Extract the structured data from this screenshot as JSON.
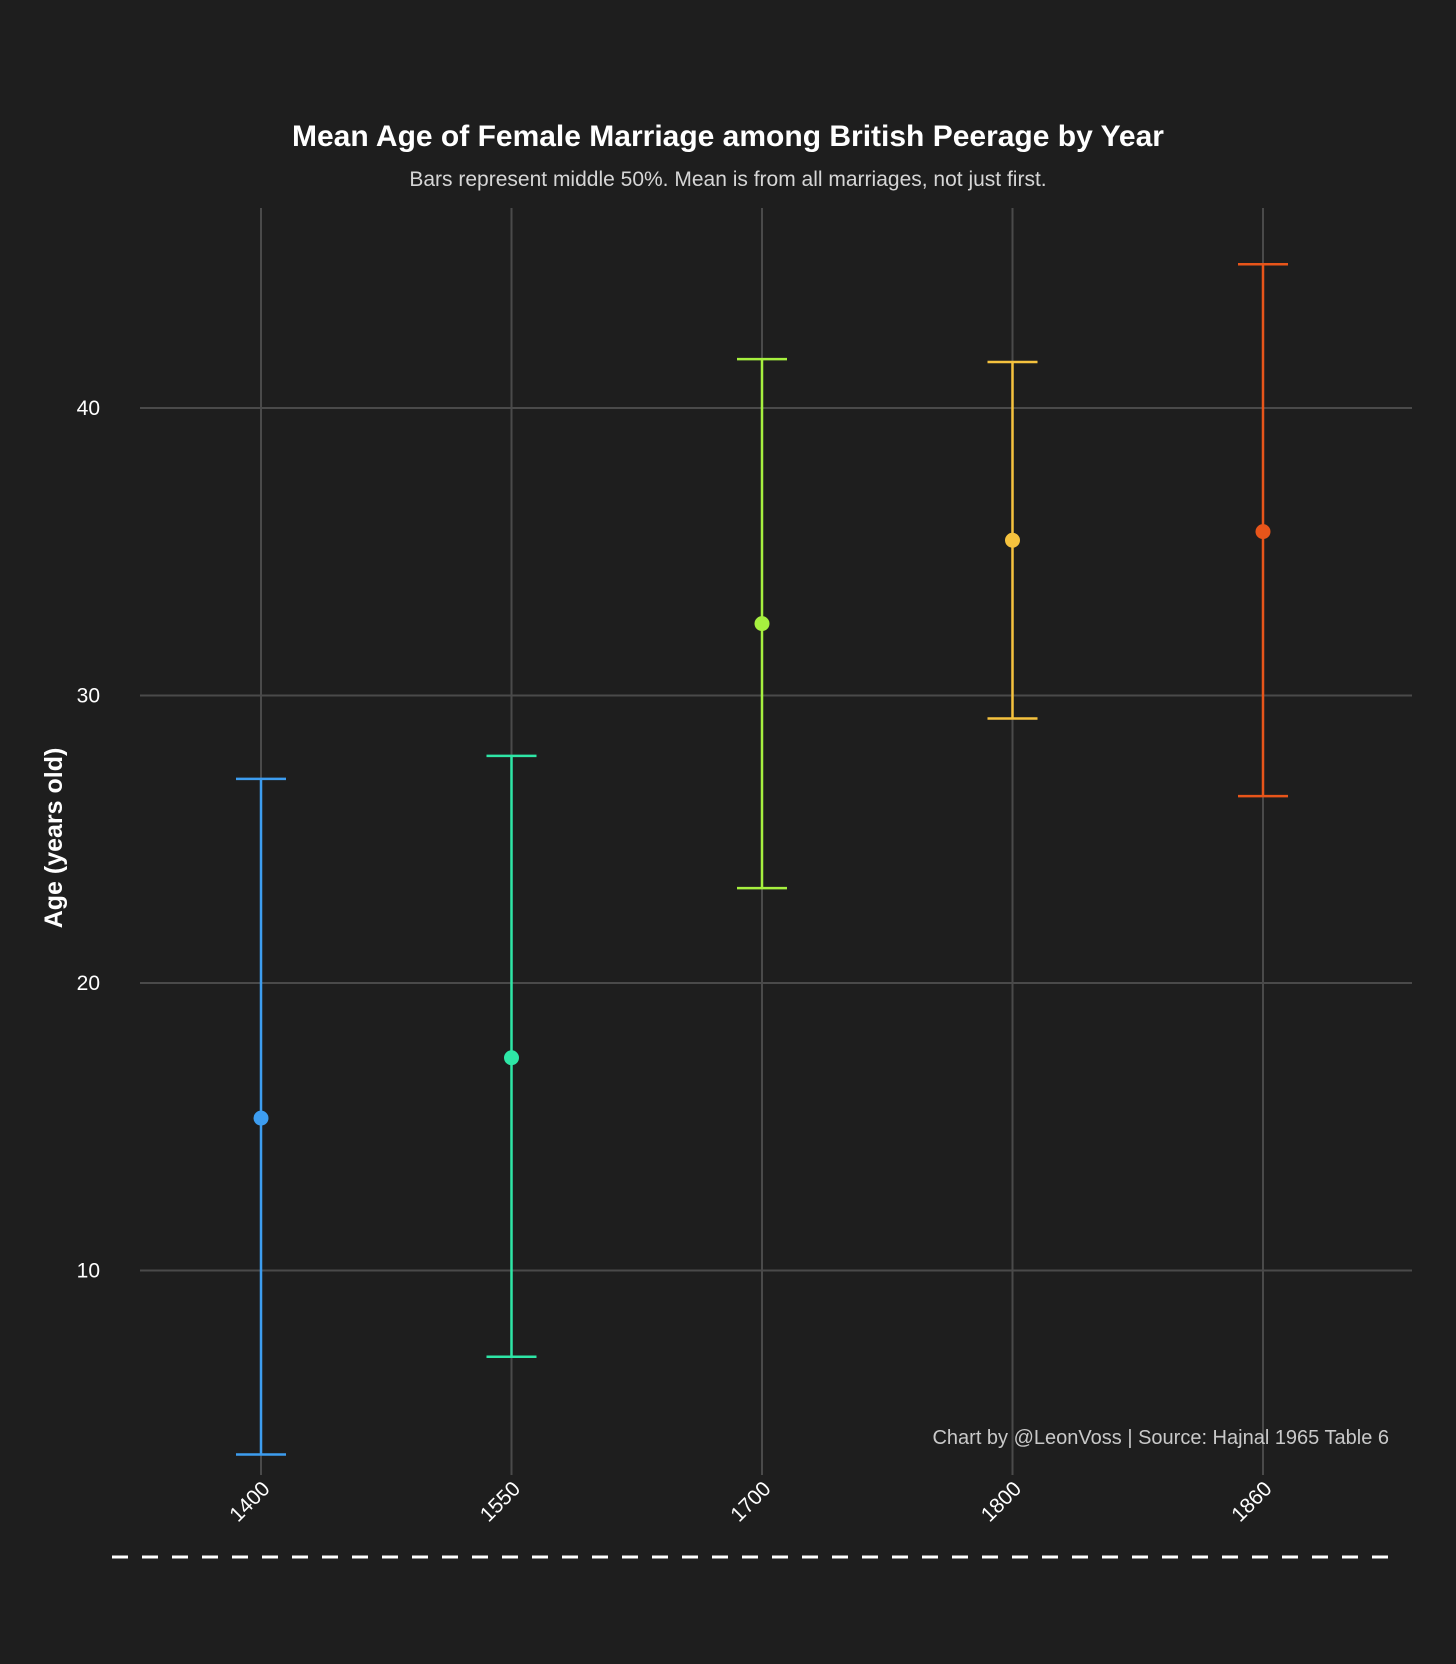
{
  "chart_data": {
    "type": "scatter",
    "title": "Mean Age of Female Marriage among British Peerage by Year",
    "subtitle": "Bars represent middle 50%. Mean is from all marriages, not just first.",
    "xlabel": "",
    "ylabel": "Age (years old)",
    "caption": "Chart by @LeonVoss | Source: Hajnal 1965 Table 6",
    "categories": [
      "1400",
      "1550",
      "1700",
      "1800",
      "1860"
    ],
    "means": [
      15.3,
      17.4,
      32.5,
      35.4,
      35.7
    ],
    "lower": [
      3.6,
      7.0,
      23.3,
      29.2,
      26.5
    ],
    "upper": [
      27.1,
      27.9,
      41.7,
      41.6,
      45.0
    ],
    "colors": [
      "#3d9df0",
      "#2ee6a6",
      "#a6f03f",
      "#f5c23e",
      "#e8551a"
    ],
    "yticks": [
      10,
      20,
      30,
      40
    ],
    "ylim": [
      2.5,
      47
    ],
    "grid": true,
    "legend": "none"
  }
}
